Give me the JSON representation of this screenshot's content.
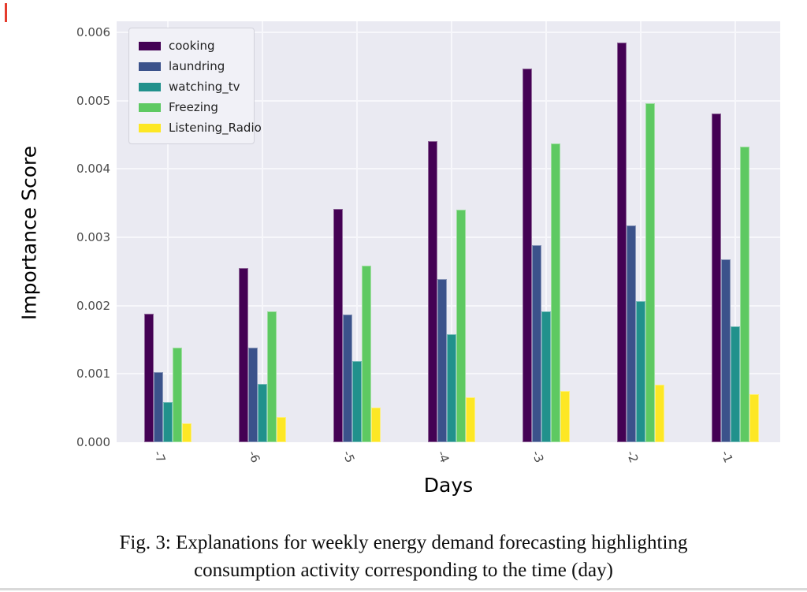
{
  "caption": {
    "line1": "Fig. 3: Explanations for weekly energy demand forecasting highlighting",
    "line2": "consumption activity corresponding to the time (day)"
  },
  "chart_data": {
    "type": "bar",
    "title": "",
    "xlabel": "Days",
    "ylabel": "Importance Score",
    "categories": [
      "-7",
      "-6",
      "-5",
      "-4",
      "-3",
      "-2",
      "-1"
    ],
    "series": [
      {
        "name": "cooking",
        "color": "#440154",
        "values": [
          0.00188,
          0.00255,
          0.00341,
          0.00441,
          0.00547,
          0.00585,
          0.00481
        ]
      },
      {
        "name": "laundring",
        "color": "#3b528b",
        "values": [
          0.00103,
          0.00139,
          0.00187,
          0.00239,
          0.00288,
          0.00317,
          0.00268
        ]
      },
      {
        "name": "watching_tv",
        "color": "#21918c",
        "values": [
          0.00059,
          0.00085,
          0.00119,
          0.00158,
          0.00192,
          0.00207,
          0.0017
        ]
      },
      {
        "name": "Freezing",
        "color": "#5ec962",
        "values": [
          0.00138,
          0.00192,
          0.00258,
          0.0034,
          0.00437,
          0.00496,
          0.00433
        ]
      },
      {
        "name": "Listening_Radio",
        "color": "#fde725",
        "values": [
          0.00028,
          0.00037,
          0.00051,
          0.00066,
          0.00075,
          0.00084,
          0.0007
        ]
      }
    ],
    "yticks": [
      0.0,
      0.001,
      0.002,
      0.003,
      0.004,
      0.005,
      0.006
    ],
    "ylim": [
      0,
      0.00616
    ],
    "grid": true,
    "legend_position": "upper left",
    "plot_background": "#eaeaf2",
    "gridline_color": "#f7f7fb"
  },
  "colors": {
    "page_background": "#ffffff",
    "tick_label": "#4c4c4c",
    "axis_label": "#000000",
    "caption_text": "#0d0d0d",
    "legend_background": "#f1f1f7",
    "artifact_red_mark": "#e53b2c",
    "bottom_edge_line": "#d9d9d9"
  }
}
